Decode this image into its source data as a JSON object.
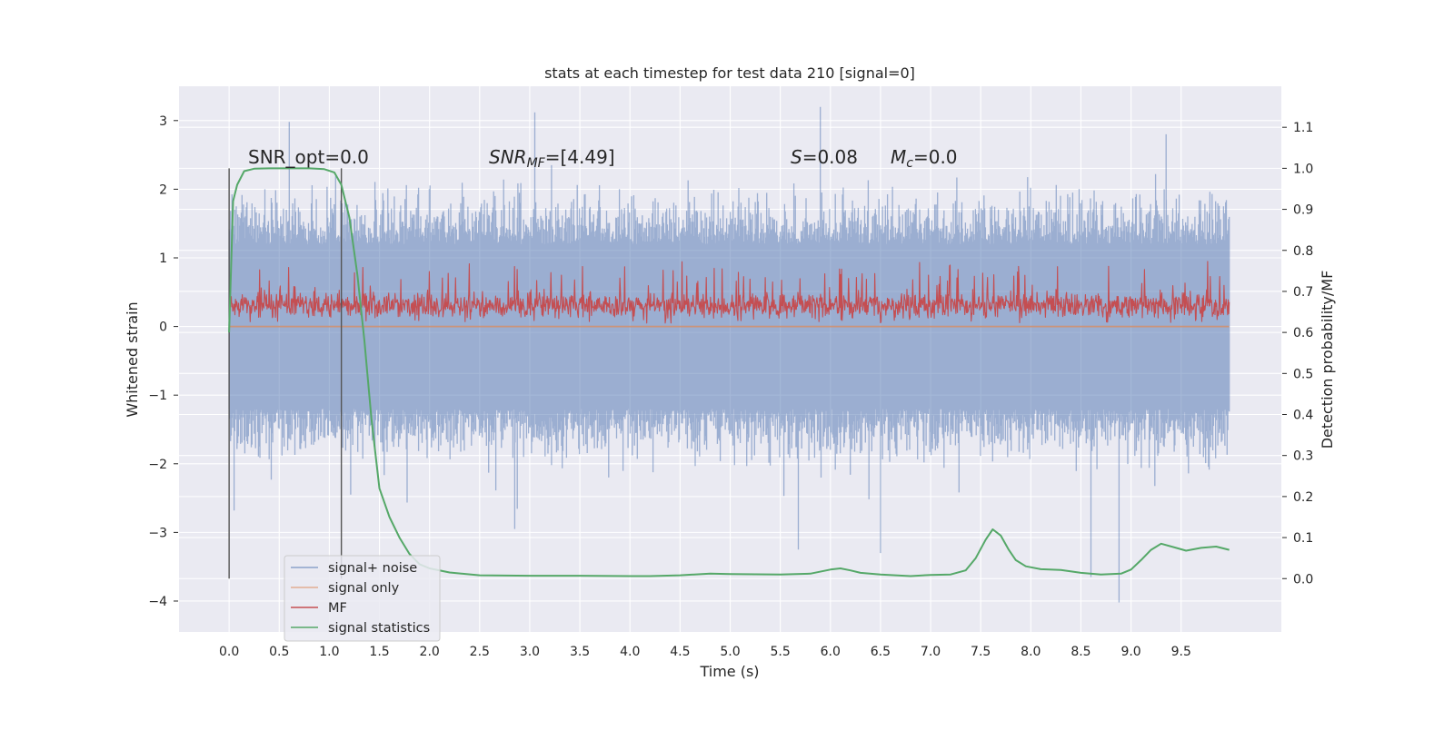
{
  "chart_data": {
    "type": "line",
    "title": "stats at each timestep for test data 210 [signal=0]",
    "xlabel": "Time (s)",
    "ylabel": "Whitened strain",
    "y2label": "Detection probability/MF",
    "xlim": [
      -0.5,
      10.5
    ],
    "ylim": [
      -4.45,
      3.5
    ],
    "y2lim": [
      -0.13,
      1.2
    ],
    "x_ticks": [
      "0.0",
      "0.5",
      "1.0",
      "1.5",
      "2.0",
      "2.5",
      "3.0",
      "3.5",
      "4.0",
      "4.5",
      "5.0",
      "5.5",
      "6.0",
      "6.5",
      "7.0",
      "7.5",
      "8.0",
      "8.5",
      "9.0",
      "9.5"
    ],
    "y_ticks": [
      "3",
      "2",
      "1",
      "0",
      "−1",
      "−2",
      "−3",
      "−4"
    ],
    "y2_ticks": [
      "1.1",
      "1.0",
      "0.9",
      "0.8",
      "0.7",
      "0.6",
      "0.5",
      "0.4",
      "0.3",
      "0.2",
      "0.1",
      "0.0"
    ],
    "grid": true,
    "legend_position": "lower-left",
    "colors": {
      "background": "#eaeaf2",
      "grid": "#ffffff",
      "noise": "#4c72b0",
      "signal_only": "#dd8452",
      "mf": "#c44e52",
      "stats": "#55a868",
      "vline": "#555555"
    },
    "annotations": {
      "snr_opt": "SNR_opt=0.0",
      "snr_mf_base": "SNR",
      "snr_mf_sub": "MF",
      "snr_mf_value": "=[4.49]",
      "s_var": "S",
      "s_value": "=0.08",
      "mc_var": "M",
      "mc_sub": "c",
      "mc_value": "=0.0"
    },
    "vertical_lines": [
      0.0,
      1.12
    ],
    "series": [
      {
        "name": "signal+ noise",
        "axis": "left",
        "style": "dense noise envelope",
        "t_range": [
          0.0,
          9.98
        ],
        "typical_range": [
          -1.2,
          1.2
        ],
        "extremes": [
          {
            "x": 0.05,
            "y": -2.68
          },
          {
            "x": 0.6,
            "y": 2.98
          },
          {
            "x": 2.85,
            "y": -2.95
          },
          {
            "x": 3.05,
            "y": 3.12
          },
          {
            "x": 5.68,
            "y": -3.25
          },
          {
            "x": 5.9,
            "y": 3.2
          },
          {
            "x": 6.5,
            "y": -3.3
          },
          {
            "x": 8.6,
            "y": -3.65
          },
          {
            "x": 8.88,
            "y": -4.02
          },
          {
            "x": 9.35,
            "y": 2.8
          }
        ]
      },
      {
        "name": "signal only",
        "axis": "left",
        "x": [
          0.0,
          9.98
        ],
        "y": [
          0.0,
          0.0
        ]
      },
      {
        "name": "MF",
        "axis": "left",
        "style": "dense filter output",
        "t_range": [
          0.0,
          9.98
        ],
        "typical_range": [
          0.05,
          0.65
        ]
      },
      {
        "name": "signal statistics",
        "axis": "right",
        "x": [
          0.0,
          0.04,
          0.08,
          0.15,
          0.25,
          0.4,
          0.6,
          0.8,
          0.95,
          1.05,
          1.12,
          1.2,
          1.28,
          1.35,
          1.42,
          1.5,
          1.6,
          1.7,
          1.8,
          1.9,
          2.0,
          2.2,
          2.5,
          3.0,
          3.5,
          4.0,
          4.2,
          4.5,
          4.8,
          5.0,
          5.5,
          5.8,
          6.0,
          6.1,
          6.2,
          6.3,
          6.5,
          6.8,
          7.0,
          7.2,
          7.35,
          7.45,
          7.55,
          7.62,
          7.7,
          7.78,
          7.85,
          7.95,
          8.1,
          8.3,
          8.5,
          8.7,
          8.9,
          9.0,
          9.1,
          9.2,
          9.3,
          9.45,
          9.55,
          9.7,
          9.85,
          9.98
        ],
        "y": [
          0.6,
          0.92,
          0.96,
          0.993,
          0.999,
          1.0,
          1.0,
          1.0,
          0.998,
          0.99,
          0.96,
          0.88,
          0.74,
          0.58,
          0.39,
          0.22,
          0.15,
          0.1,
          0.06,
          0.035,
          0.025,
          0.015,
          0.008,
          0.007,
          0.007,
          0.006,
          0.006,
          0.008,
          0.012,
          0.011,
          0.01,
          0.012,
          0.022,
          0.025,
          0.02,
          0.014,
          0.01,
          0.006,
          0.009,
          0.01,
          0.02,
          0.05,
          0.095,
          0.12,
          0.105,
          0.07,
          0.045,
          0.03,
          0.023,
          0.021,
          0.014,
          0.01,
          0.012,
          0.022,
          0.045,
          0.07,
          0.085,
          0.075,
          0.068,
          0.075,
          0.078,
          0.07
        ]
      }
    ]
  }
}
